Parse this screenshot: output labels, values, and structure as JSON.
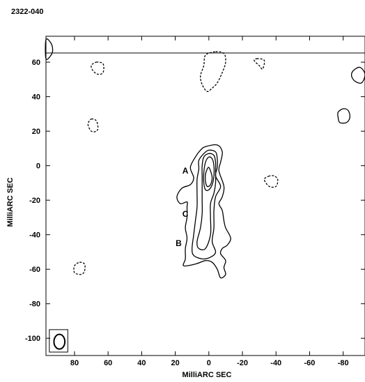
{
  "chart_data": {
    "type": "contour",
    "title": "2322-040",
    "xlabel": "MilliARC SEC",
    "ylabel": "MilliARC SEC",
    "xlim": [
      97,
      -93
    ],
    "ylim": [
      -110,
      75
    ],
    "x_ticks": [
      80,
      60,
      40,
      20,
      0,
      -20,
      -40,
      -60,
      -80
    ],
    "x_tick_labels": [
      "80",
      "60",
      "40",
      "20",
      "0",
      "-20",
      "-40",
      "-60",
      "-80"
    ],
    "y_ticks": [
      60,
      40,
      20,
      0,
      -20,
      -40,
      -60,
      -80,
      -100
    ],
    "y_tick_labels": [
      "60",
      "40",
      "20",
      "0",
      "-20",
      "-40",
      "-60",
      "-80",
      "-100"
    ],
    "components": [
      {
        "label": "A",
        "x": 14,
        "y": -3
      },
      {
        "label": "C",
        "x": 14,
        "y": -28
      },
      {
        "label": "B",
        "x": 18,
        "y": -45
      }
    ],
    "contours": [
      {
        "style": "solid",
        "points": [
          [
            -5,
            12
          ],
          [
            -8,
            8
          ],
          [
            -7,
            2
          ],
          [
            -6,
            -3
          ],
          [
            -9,
            -12
          ],
          [
            -8,
            -18
          ],
          [
            -6,
            -22
          ],
          [
            -8,
            -26
          ],
          [
            -9,
            -32
          ],
          [
            -10,
            -36
          ],
          [
            -13,
            -42
          ],
          [
            -11,
            -46
          ],
          [
            -8,
            -48
          ],
          [
            -7,
            -51
          ],
          [
            -10,
            -55
          ],
          [
            -9,
            -59
          ],
          [
            -10,
            -63
          ],
          [
            -7,
            -65
          ],
          [
            -5,
            -60
          ],
          [
            -2,
            -56
          ],
          [
            2,
            -55
          ],
          [
            8,
            -57
          ],
          [
            15,
            -58
          ],
          [
            14,
            -54
          ],
          [
            14,
            -48
          ],
          [
            13,
            -42
          ],
          [
            14,
            -36
          ],
          [
            13,
            -30
          ],
          [
            13,
            -24
          ],
          [
            13,
            -21
          ],
          [
            17,
            -22
          ],
          [
            19,
            -18
          ],
          [
            16,
            -13
          ],
          [
            11,
            -11
          ],
          [
            9,
            -7
          ],
          [
            11,
            -1
          ],
          [
            8,
            5
          ],
          [
            5,
            9
          ],
          [
            2,
            11
          ]
        ]
      },
      {
        "style": "solid",
        "points": [
          [
            -4,
            8
          ],
          [
            -5,
            4
          ],
          [
            -5,
            -1
          ],
          [
            -4,
            -6
          ],
          [
            -7,
            -12
          ],
          [
            -4,
            -18
          ],
          [
            -3,
            -26
          ],
          [
            -3,
            -36
          ],
          [
            -2,
            -44
          ],
          [
            -4,
            -50
          ],
          [
            -1,
            -53
          ],
          [
            4,
            -54
          ],
          [
            9,
            -52
          ],
          [
            10,
            -48
          ],
          [
            9,
            -40
          ],
          [
            8,
            -32
          ],
          [
            7,
            -24
          ],
          [
            7,
            -16
          ],
          [
            7,
            -8
          ],
          [
            6,
            -2
          ],
          [
            6,
            3
          ],
          [
            3,
            7
          ],
          [
            0,
            9
          ]
        ]
      },
      {
        "style": "solid",
        "points": [
          [
            -3,
            6
          ],
          [
            -4,
            2
          ],
          [
            -4,
            -3
          ],
          [
            -4,
            -10
          ],
          [
            -3,
            -16
          ],
          [
            -1,
            -22
          ],
          [
            -1,
            -30
          ],
          [
            -1,
            -40
          ],
          [
            2,
            -48
          ],
          [
            6,
            -48
          ],
          [
            7,
            -44
          ],
          [
            5,
            -36
          ],
          [
            4,
            -28
          ],
          [
            4,
            -20
          ],
          [
            4,
            -14
          ],
          [
            4,
            -6
          ],
          [
            4,
            0
          ],
          [
            3,
            5
          ],
          [
            0,
            7
          ]
        ]
      },
      {
        "style": "solid",
        "points": [
          [
            -2,
            4
          ],
          [
            -3,
            0
          ],
          [
            -3,
            -6
          ],
          [
            -2,
            -11
          ],
          [
            0,
            -14
          ],
          [
            2,
            -14
          ],
          [
            3,
            -10
          ],
          [
            3,
            -4
          ],
          [
            2,
            2
          ],
          [
            0,
            5
          ]
        ]
      },
      {
        "style": "solid",
        "points": [
          [
            -1,
            -3
          ],
          [
            -2,
            -7
          ],
          [
            -1,
            -11
          ],
          [
            1,
            -12
          ],
          [
            2,
            -9
          ],
          [
            2,
            -5
          ],
          [
            1,
            -2
          ],
          [
            0,
            -1
          ]
        ]
      },
      {
        "style": "dashed",
        "points": [
          [
            67,
            60
          ],
          [
            63,
            59
          ],
          [
            63,
            54
          ],
          [
            66,
            53
          ],
          [
            69,
            55
          ],
          [
            70,
            58
          ]
        ]
      },
      {
        "style": "dashed",
        "points": [
          [
            70,
            27
          ],
          [
            67,
            26
          ],
          [
            66,
            22
          ],
          [
            67,
            20
          ],
          [
            70,
            20
          ],
          [
            72,
            24
          ]
        ]
      },
      {
        "style": "dashed",
        "points": [
          [
            77,
            -56
          ],
          [
            74,
            -57
          ],
          [
            74,
            -61
          ],
          [
            76,
            -63
          ],
          [
            80,
            -62
          ],
          [
            80,
            -58
          ]
        ]
      },
      {
        "style": "dashed",
        "points": [
          [
            -4,
            66
          ],
          [
            -9,
            65
          ],
          [
            -10,
            60
          ],
          [
            -8,
            54
          ],
          [
            -5,
            48
          ],
          [
            -2,
            45
          ],
          [
            1,
            43
          ],
          [
            4,
            47
          ],
          [
            5,
            52
          ],
          [
            3,
            58
          ],
          [
            2,
            64
          ]
        ]
      },
      {
        "style": "dashed",
        "points": [
          [
            -29,
            62
          ],
          [
            -27,
            61
          ],
          [
            -30,
            58
          ],
          [
            -32,
            56
          ],
          [
            -33,
            61
          ]
        ]
      },
      {
        "style": "dashed",
        "points": [
          [
            -36,
            -6
          ],
          [
            -33,
            -8
          ],
          [
            -36,
            -12
          ],
          [
            -40,
            -12
          ],
          [
            -41,
            -8
          ],
          [
            -39,
            -6
          ]
        ]
      },
      {
        "style": "solid",
        "points": [
          [
            97,
            73
          ],
          [
            94,
            71
          ],
          [
            93,
            67
          ],
          [
            94,
            64
          ],
          [
            97,
            62
          ]
        ]
      },
      {
        "style": "solid",
        "points": [
          [
            -90,
            57
          ],
          [
            -86,
            55
          ],
          [
            -85,
            52
          ],
          [
            -87,
            49
          ],
          [
            -91,
            48
          ],
          [
            -93,
            53
          ]
        ]
      },
      {
        "style": "solid",
        "points": [
          [
            -80,
            33
          ],
          [
            -77,
            31
          ],
          [
            -77,
            28
          ],
          [
            -78,
            25
          ],
          [
            -82,
            25
          ],
          [
            -84,
            28
          ],
          [
            -83,
            32
          ]
        ]
      }
    ],
    "beam": {
      "x": 89,
      "y": -102,
      "width_mas": 6.5,
      "height_mas": 8.5,
      "box_x": [
        95,
        84
      ],
      "box_y": [
        -95,
        -108
      ]
    },
    "grid": false,
    "header_band": true
  }
}
